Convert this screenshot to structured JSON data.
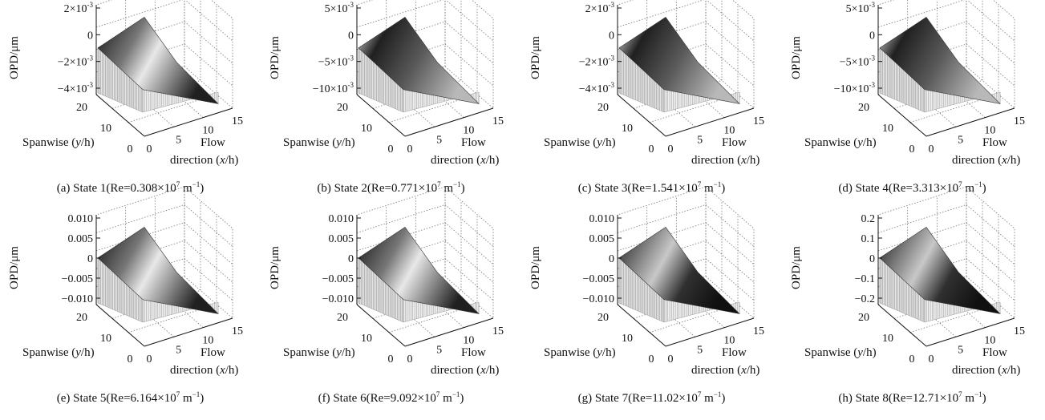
{
  "figure": {
    "panels": [
      {
        "caption": {
          "prefix": "(a) State 1(Re=0.308×10",
          "exp": "7",
          "unit": " m",
          "unit_exp": "−1",
          "close": ")"
        },
        "z_ticks": [
          "2×10",
          "0",
          "−2×10",
          "−4×10"
        ],
        "z_tick_exp": [
          "-3",
          "",
          "-3",
          "-3"
        ],
        "surface": "ramp-mid"
      },
      {
        "caption": {
          "prefix": "(b) State 2(Re=0.771×10",
          "exp": "7",
          "unit": " m",
          "unit_exp": "−1",
          "close": ")"
        },
        "z_ticks": [
          "5×10",
          "0",
          "−5×10",
          "−10×10"
        ],
        "z_tick_exp": [
          "-3",
          "",
          "-3",
          "-3"
        ],
        "surface": "peak-front"
      },
      {
        "caption": {
          "prefix": "(c) State 3(Re=1.541×10",
          "exp": "7",
          "unit": " m",
          "unit_exp": "−1",
          "close": ")"
        },
        "z_ticks": [
          "2×10",
          "0",
          "−2×10",
          "−4×10"
        ],
        "z_tick_exp": [
          "-3",
          "",
          "-3",
          "-3"
        ],
        "surface": "peak-front"
      },
      {
        "caption": {
          "prefix": "(d) State 4(Re=3.313×10",
          "exp": "7",
          "unit": " m",
          "unit_exp": "−1",
          "close": ")"
        },
        "z_ticks": [
          "5×10",
          "0",
          "−5×10",
          "−10×10"
        ],
        "z_tick_exp": [
          "-3",
          "",
          "-3",
          "-3"
        ],
        "surface": "peak-front"
      },
      {
        "caption": {
          "prefix": "(e) State 5(Re=6.164×10",
          "exp": "7",
          "unit": " m",
          "unit_exp": "−1",
          "close": ")"
        },
        "z_ticks": [
          "0.010",
          "0.005",
          "0",
          "−0.005",
          "−0.010"
        ],
        "z_tick_exp": [
          "",
          "",
          "",
          "",
          ""
        ],
        "surface": "ramp-mid"
      },
      {
        "caption": {
          "prefix": "(f) State 6(Re=9.092×10",
          "exp": "7",
          "unit": " m",
          "unit_exp": "−1",
          "close": ")"
        },
        "z_ticks": [
          "0.010",
          "0.005",
          "0",
          "−0.005",
          "−0.010"
        ],
        "z_tick_exp": [
          "",
          "",
          "",
          "",
          ""
        ],
        "surface": "ramp-mid"
      },
      {
        "caption": {
          "prefix": "(g) State 7(Re=11.02×10",
          "exp": "7",
          "unit": " m",
          "unit_exp": "−1",
          "close": ")"
        },
        "z_ticks": [
          "0.010",
          "0.005",
          "0",
          "−0.005",
          "−0.010"
        ],
        "z_tick_exp": [
          "",
          "",
          "",
          "",
          ""
        ],
        "surface": "ramp-steep"
      },
      {
        "caption": {
          "prefix": "(h) State 8(Re=12.71×10",
          "exp": "7",
          "unit": " m",
          "unit_exp": "−1",
          "close": ")"
        },
        "z_ticks": [
          "0.2",
          "0.1",
          "0",
          "−0.1",
          "−0.2"
        ],
        "z_tick_exp": [
          "",
          "",
          "",
          "",
          ""
        ],
        "surface": "ramp-steep"
      }
    ],
    "axes": {
      "z_label": "OPD/μm",
      "y_label_prefix": "Spanwise (",
      "y_label_var": "y",
      "y_label_suffix": "/h)",
      "y_ticks": [
        "20",
        "10",
        "0"
      ],
      "x_label_line1": "Flow",
      "x_label_prefix": "direction (",
      "x_label_var": "x",
      "x_label_suffix": "/h)",
      "x_ticks": [
        "0",
        "5",
        "10",
        "15"
      ]
    }
  }
}
